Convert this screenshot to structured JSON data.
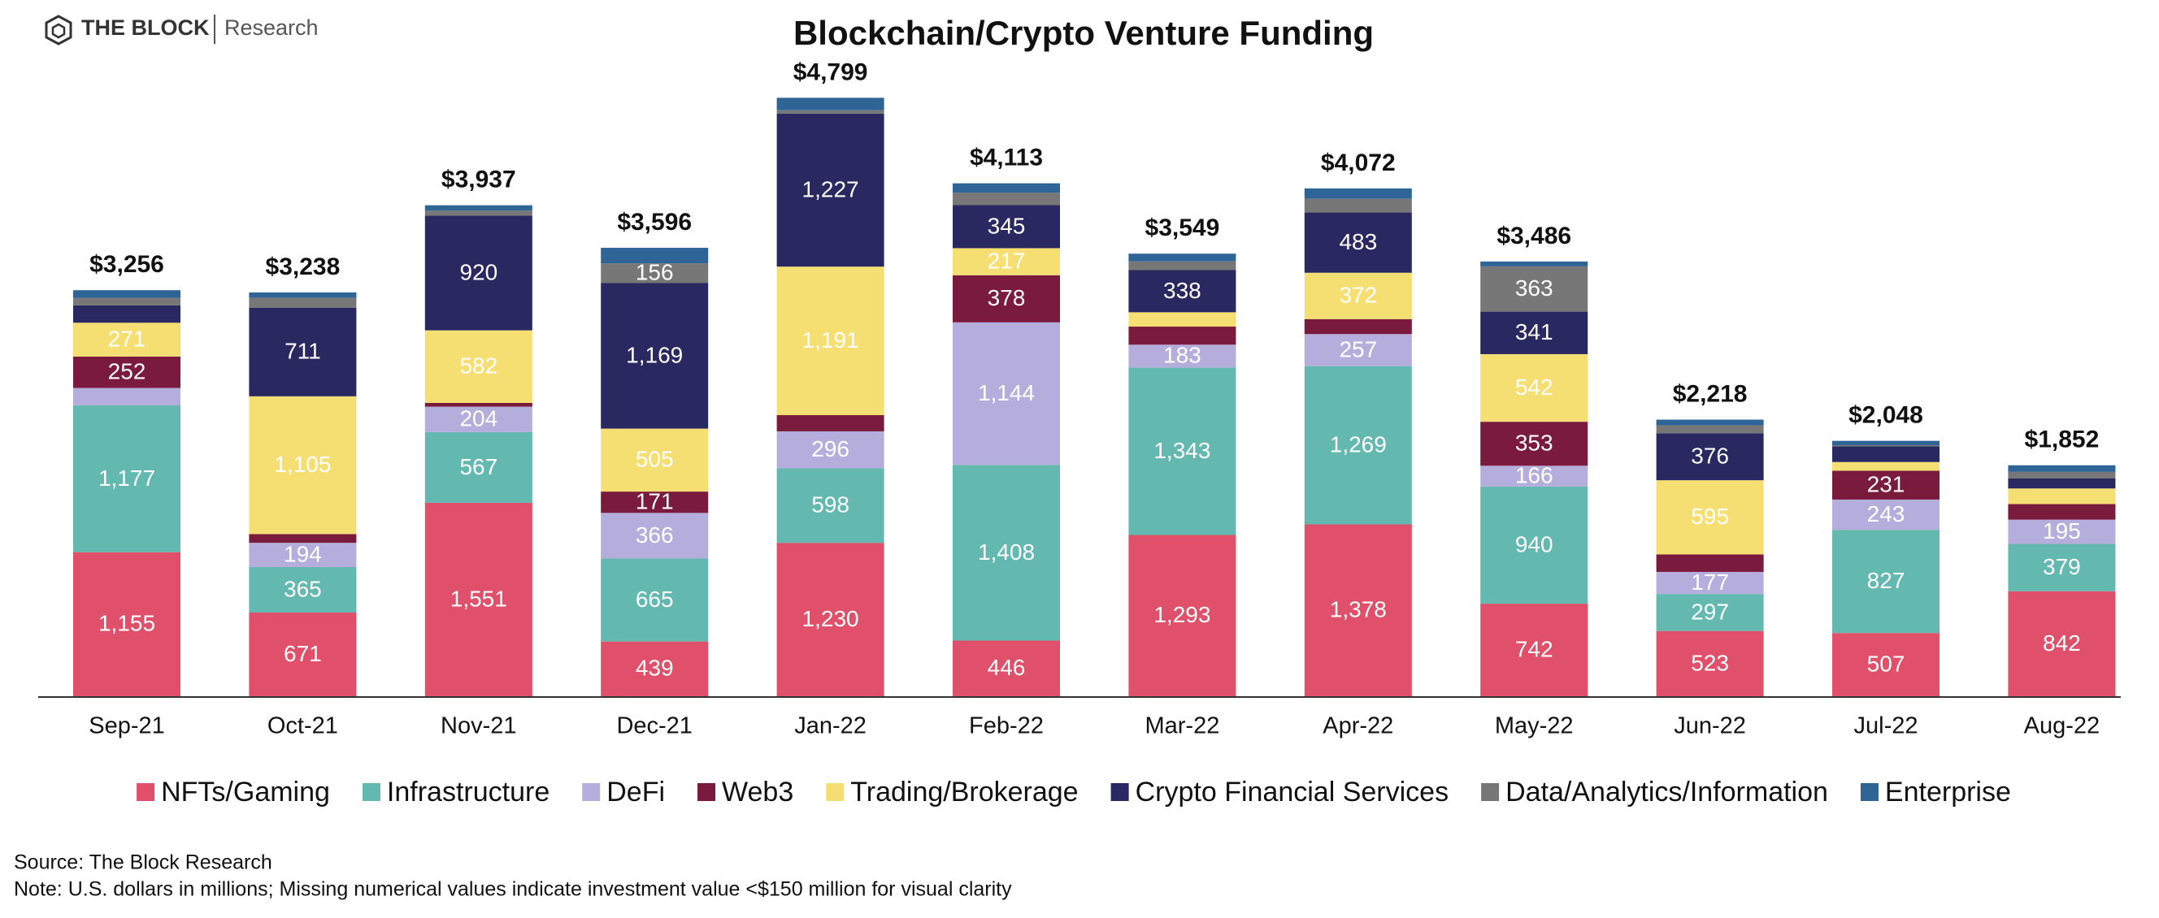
{
  "chart_data": {
    "type": "stacked-bar",
    "brand": "THE BLOCK",
    "brand_sub": "Research",
    "title": "Blockchain/Crypto Venture Funding",
    "source": "Source: The Block Research",
    "note": "Note: U.S. dollars in millions; Missing numerical values indicate investment value <$150 million for visual clarity",
    "categories": [
      "Sep-21",
      "Oct-21",
      "Nov-21",
      "Dec-21",
      "Jan-22",
      "Feb-22",
      "Mar-22",
      "Apr-22",
      "May-22",
      "Jun-22",
      "Jul-22",
      "Aug-22"
    ],
    "series": [
      {
        "name": "NFTs/Gaming",
        "color": "#e0506a",
        "values": [
          1155,
          671,
          1551,
          439,
          1230,
          446,
          1293,
          1378,
          742,
          523,
          507,
          842
        ],
        "value_labels": [
          "1,155",
          "671",
          "1,551",
          "439",
          "1,230",
          "446",
          "1,293",
          "1,378",
          "742",
          "523",
          "507",
          "842"
        ]
      },
      {
        "name": "Infrastructure",
        "color": "#63b8b0",
        "values": [
          1177,
          365,
          567,
          665,
          598,
          1408,
          1343,
          1269,
          940,
          297,
          827,
          379
        ],
        "value_labels": [
          "1,177",
          "365",
          "567",
          "665",
          "598",
          "1,408",
          "1,343",
          "1,269",
          "940",
          "297",
          "827",
          "379"
        ]
      },
      {
        "name": "DeFi",
        "color": "#b5aedc",
        "values": [
          140,
          194,
          204,
          366,
          296,
          1144,
          183,
          257,
          166,
          177,
          243,
          195
        ],
        "value_labels": [
          null,
          "194",
          "204",
          "366",
          "296",
          "1,144",
          "183",
          "257",
          "166",
          "177",
          "243",
          "195"
        ]
      },
      {
        "name": "Web3",
        "color": "#7a1a3c",
        "values": [
          252,
          70,
          30,
          171,
          130,
          378,
          145,
          120,
          353,
          140,
          231,
          125
        ],
        "value_labels": [
          "252",
          null,
          null,
          "171",
          null,
          "378",
          null,
          null,
          "353",
          null,
          "231",
          null
        ]
      },
      {
        "name": "Trading/Brokerage",
        "color": "#f6df72",
        "values": [
          271,
          1105,
          582,
          505,
          1191,
          217,
          115,
          372,
          542,
          595,
          70,
          125
        ],
        "value_labels": [
          "271",
          "1,105",
          "582",
          "505",
          "1,191",
          "217",
          null,
          "372",
          "542",
          "595",
          null,
          null
        ]
      },
      {
        "name": "Crypto Financial Services",
        "color": "#2a2860",
        "values": [
          140,
          711,
          920,
          1169,
          1227,
          345,
          338,
          483,
          341,
          376,
          125,
          80
        ],
        "value_labels": [
          null,
          "711",
          "920",
          "1,169",
          "1,227",
          "345",
          "338",
          "483",
          "341",
          "376",
          null,
          null
        ]
      },
      {
        "name": "Data/Analytics/Information",
        "color": "#777777",
        "values": [
          60,
          80,
          40,
          156,
          27,
          100,
          70,
          110,
          363,
          65,
          10,
          53
        ],
        "value_labels": [
          null,
          null,
          null,
          "156",
          null,
          null,
          null,
          null,
          "363",
          null,
          null,
          null
        ]
      },
      {
        "name": "Enterprise",
        "color": "#2e6496",
        "values": [
          61,
          42,
          43,
          125,
          100,
          75,
          62,
          83,
          39,
          45,
          35,
          53
        ],
        "value_labels": [
          null,
          null,
          null,
          null,
          null,
          null,
          null,
          null,
          null,
          null,
          null,
          null
        ]
      }
    ],
    "totals": {
      "values": [
        3256,
        3238,
        3937,
        3596,
        4799,
        4113,
        3549,
        4072,
        3486,
        2218,
        2048,
        1852
      ],
      "value_labels": [
        "$3,256",
        "$3,238",
        "$3,937",
        "$3,596",
        "$4,799",
        "$4,113",
        "$3,549",
        "$4,072",
        "$3,486",
        "$2,218",
        "$2,048",
        "$1,852"
      ]
    }
  }
}
